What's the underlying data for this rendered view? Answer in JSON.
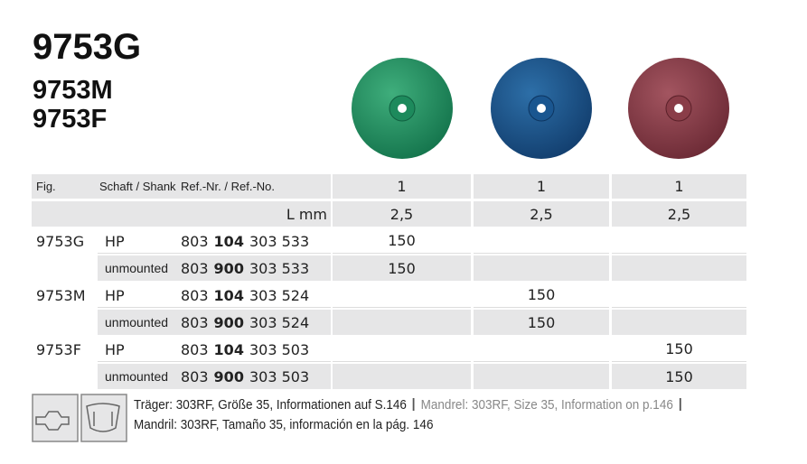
{
  "titles": [
    "9753G",
    "9753M",
    "9753F"
  ],
  "table": {
    "header": {
      "fig": "Fig.",
      "shank": "Schaft / Shank",
      "ref": "Ref.-Nr. / Ref.-No.",
      "pack": [
        1,
        1,
        1
      ]
    },
    "length": {
      "label": "L mm",
      "values": [
        "2,5",
        "2,5",
        "2,5"
      ]
    },
    "rows": [
      {
        "fig": "9753G",
        "shank": "HP",
        "ref": [
          "803",
          "104",
          "303 533"
        ],
        "qty": [
          150,
          null,
          null
        ]
      },
      {
        "shank": "unmounted",
        "ref": [
          "803",
          "900",
          "303 533"
        ],
        "qty": [
          150,
          null,
          null
        ]
      },
      {
        "fig": "9753M",
        "shank": "HP",
        "ref": [
          "803",
          "104",
          "303 524"
        ],
        "qty": [
          null,
          150,
          null
        ]
      },
      {
        "shank": "unmounted",
        "ref": [
          "803",
          "900",
          "303 524"
        ],
        "qty": [
          null,
          150,
          null
        ]
      },
      {
        "fig": "9753F",
        "shank": "HP",
        "ref": [
          "803",
          "104",
          "303 503"
        ],
        "qty": [
          null,
          null,
          150
        ]
      },
      {
        "shank": "unmounted",
        "ref": [
          "803",
          "900",
          "303 503"
        ],
        "qty": [
          null,
          null,
          150
        ]
      }
    ]
  },
  "footer": [
    "Träger: 303RF, Größe 35, Informationen auf S.146",
    "Mandrel: 303RF, Size 35, Information on p.146",
    "Mandril: 303RF, Tamaño 35, información en la pág. 146"
  ]
}
